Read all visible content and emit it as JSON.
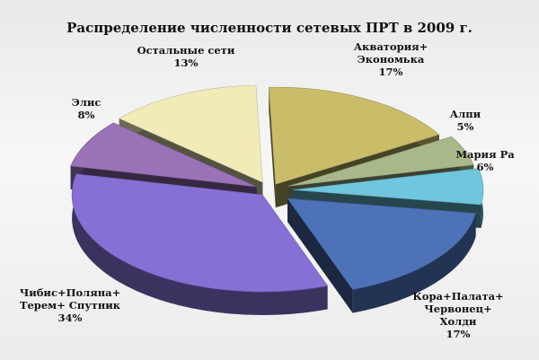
{
  "chart_data": {
    "type": "pie",
    "title": "Распределение численности сетевых ПРТ в 2009 г.",
    "slices": [
      {
        "label": [
          "Акватория+",
          "Экономька"
        ],
        "value": 17,
        "value_label": "17%",
        "color": "#c9bd6a"
      },
      {
        "label": [
          "Алпи"
        ],
        "value": 5,
        "value_label": "5%",
        "color": "#a8b88b"
      },
      {
        "label": [
          "Мария Ра"
        ],
        "value": 6,
        "value_label": "6%",
        "color": "#6fc6dd"
      },
      {
        "label": [
          "Кора+Палата+",
          "Червонец+",
          "Холди"
        ],
        "value": 17,
        "value_label": "17%",
        "color": "#4e72b8"
      },
      {
        "label": [
          "Чибис+Поляна+",
          "Терем+ Спутник"
        ],
        "value": 34,
        "value_label": "34%",
        "color": "#8670d6"
      },
      {
        "label": [
          "Элис"
        ],
        "value": 8,
        "value_label": "8%",
        "color": "#9a72b8"
      },
      {
        "label": [
          "Остальные сети"
        ],
        "value": 13,
        "value_label": "13%",
        "color": "#f1ebb8"
      }
    ],
    "legend": "none",
    "exploded": true,
    "three_d": true
  }
}
